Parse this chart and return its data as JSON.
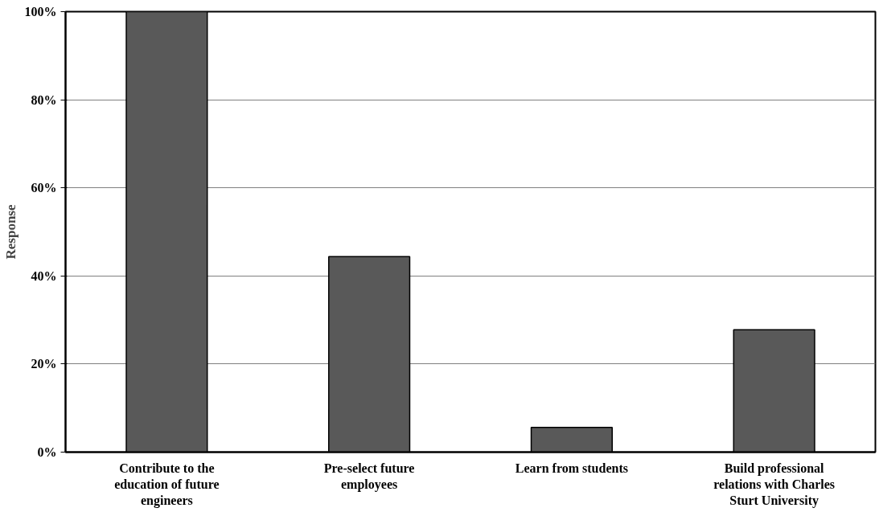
{
  "chart_data": {
    "type": "bar",
    "ylabel": "Response",
    "categories": [
      "Contribute to the education of future engineers",
      "Pre-select future employees",
      "Learn from students",
      "Build professional relations with Charles Sturt University"
    ],
    "values": [
      100,
      44.4,
      5.6,
      27.8
    ],
    "color": "#595959",
    "ylim": [
      0,
      100
    ],
    "yticks": [
      {
        "value": 0,
        "label": "0%"
      },
      {
        "value": 20,
        "label": "20%"
      },
      {
        "value": 40,
        "label": "40%"
      },
      {
        "value": 60,
        "label": "60%"
      },
      {
        "value": 80,
        "label": "80%"
      },
      {
        "value": 100,
        "label": "100%"
      }
    ],
    "grid": "y"
  }
}
